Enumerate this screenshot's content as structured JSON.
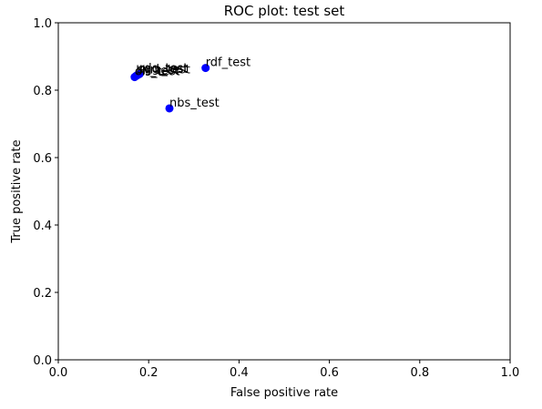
{
  "chart_data": {
    "type": "scatter",
    "title": "ROC plot: test set",
    "xlabel": "False positive rate",
    "ylabel": "True positive rate",
    "xlim": [
      0.0,
      1.0
    ],
    "ylim": [
      0.0,
      1.0
    ],
    "xticks": [
      "0.0",
      "0.2",
      "0.4",
      "0.6",
      "0.8",
      "1.0"
    ],
    "yticks": [
      "0.0",
      "0.2",
      "0.4",
      "0.6",
      "0.8",
      "1.0"
    ],
    "grid": false,
    "marker_color": "#0000ff",
    "points": [
      {
        "label": "rdf_test",
        "x": 0.326,
        "y": 0.866
      },
      {
        "label": "nbs_test",
        "x": 0.246,
        "y": 0.746
      },
      {
        "label": "ols_test",
        "x": 0.169,
        "y": 0.839
      },
      {
        "label": "lin_test",
        "x": 0.172,
        "y": 0.842
      },
      {
        "label": "svm_test",
        "x": 0.174,
        "y": 0.844
      },
      {
        "label": "sgd_test",
        "x": 0.177,
        "y": 0.846
      },
      {
        "label": "rdg_test",
        "x": 0.18,
        "y": 0.848
      }
    ]
  }
}
